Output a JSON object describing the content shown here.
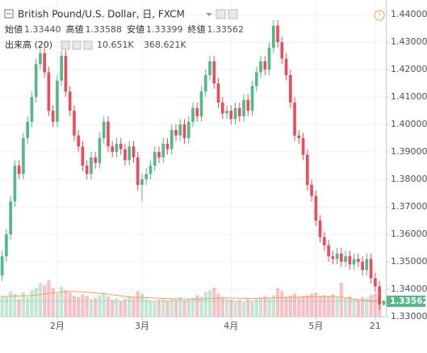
{
  "chart_data": {
    "type": "candlestick",
    "title": "British Pound/U.S. Dollar, 日, FXCM",
    "legend": [
      {
        "label": "始値",
        "value": "1.33440"
      },
      {
        "label": "高値",
        "value": "1.33588"
      },
      {
        "label": "安値",
        "value": "1.33399"
      },
      {
        "label": "終値",
        "value": "1.33562"
      }
    ],
    "volume_legend": {
      "label": "出来高 (20)",
      "volume": "10.651K",
      "ma": "368.621K"
    },
    "up_color": "#53b987",
    "down_color": "#eb4d5c",
    "ma_color": "#f6a04d",
    "categories": [
      null,
      null,
      null,
      null,
      null,
      null,
      null,
      null,
      null,
      null,
      null,
      null,
      null,
      "2月",
      null,
      null,
      null,
      null,
      null,
      null,
      null,
      null,
      null,
      null,
      null,
      null,
      null,
      null,
      null,
      null,
      null,
      null,
      null,
      "3月",
      null,
      null,
      null,
      null,
      null,
      null,
      null,
      null,
      null,
      null,
      null,
      null,
      null,
      null,
      null,
      null,
      null,
      null,
      null,
      null,
      "4月",
      null,
      null,
      null,
      null,
      null,
      null,
      null,
      null,
      null,
      null,
      null,
      null,
      null,
      null,
      null,
      null,
      null,
      null,
      null,
      "5月",
      null,
      null,
      null,
      null,
      null,
      null,
      null,
      null,
      null,
      null,
      null,
      null,
      null,
      "21",
      null,
      null
    ],
    "open": [
      1.345,
      1.352,
      1.36,
      1.372,
      1.385,
      1.382,
      1.395,
      1.401,
      1.41,
      1.422,
      1.426,
      1.419,
      1.405,
      1.401,
      1.416,
      1.425,
      1.412,
      1.405,
      1.396,
      1.392,
      1.385,
      1.382,
      1.388,
      1.386,
      1.395,
      1.401,
      1.392,
      1.39,
      1.393,
      1.391,
      1.387,
      1.392,
      1.388,
      1.378,
      1.38,
      1.382,
      1.385,
      1.39,
      1.388,
      1.393,
      1.391,
      1.398,
      1.396,
      1.4,
      1.395,
      1.401,
      1.406,
      1.403,
      1.412,
      1.418,
      1.423,
      1.415,
      1.408,
      1.404,
      1.405,
      1.402,
      1.406,
      1.403,
      1.409,
      1.405,
      1.414,
      1.419,
      1.423,
      1.42,
      1.428,
      1.436,
      1.43,
      1.424,
      1.418,
      1.408,
      1.396,
      1.395,
      1.389,
      1.378,
      1.374,
      1.365,
      1.359,
      1.356,
      1.352,
      1.351,
      1.353,
      1.35,
      1.352,
      1.349,
      1.351,
      1.35,
      1.347,
      1.351,
      1.344,
      1.341,
      1.3344
    ],
    "high": [
      1.354,
      1.362,
      1.374,
      1.387,
      1.387,
      1.397,
      1.403,
      1.412,
      1.424,
      1.428,
      1.428,
      1.421,
      1.407,
      1.418,
      1.427,
      1.427,
      1.414,
      1.407,
      1.398,
      1.394,
      1.387,
      1.39,
      1.39,
      1.397,
      1.403,
      1.403,
      1.394,
      1.395,
      1.395,
      1.393,
      1.394,
      1.394,
      1.39,
      1.382,
      1.384,
      1.387,
      1.392,
      1.392,
      1.395,
      1.395,
      1.4,
      1.4,
      1.402,
      1.402,
      1.403,
      1.408,
      1.408,
      1.414,
      1.42,
      1.425,
      1.425,
      1.417,
      1.41,
      1.407,
      1.407,
      1.408,
      1.408,
      1.411,
      1.411,
      1.416,
      1.421,
      1.425,
      1.425,
      1.43,
      1.438,
      1.438,
      1.432,
      1.426,
      1.42,
      1.41,
      1.398,
      1.397,
      1.391,
      1.38,
      1.376,
      1.367,
      1.361,
      1.358,
      1.354,
      1.355,
      1.355,
      1.354,
      1.354,
      1.353,
      1.353,
      1.352,
      1.353,
      1.353,
      1.346,
      1.343,
      1.33588
    ],
    "low": [
      1.343,
      1.35,
      1.358,
      1.37,
      1.38,
      1.38,
      1.393,
      1.399,
      1.408,
      1.42,
      1.417,
      1.403,
      1.399,
      1.399,
      1.414,
      1.41,
      1.403,
      1.394,
      1.39,
      1.383,
      1.38,
      1.38,
      1.384,
      1.384,
      1.393,
      1.39,
      1.388,
      1.388,
      1.389,
      1.385,
      1.385,
      1.386,
      1.376,
      1.372,
      1.378,
      1.38,
      1.383,
      1.386,
      1.386,
      1.389,
      1.389,
      1.394,
      1.394,
      1.393,
      1.393,
      1.399,
      1.401,
      1.401,
      1.41,
      1.416,
      1.413,
      1.406,
      1.402,
      1.402,
      1.4,
      1.4,
      1.401,
      1.401,
      1.403,
      1.403,
      1.412,
      1.417,
      1.418,
      1.418,
      1.426,
      1.428,
      1.422,
      1.416,
      1.406,
      1.394,
      1.393,
      1.387,
      1.376,
      1.372,
      1.363,
      1.357,
      1.354,
      1.35,
      1.349,
      1.349,
      1.348,
      1.348,
      1.347,
      1.347,
      1.348,
      1.345,
      1.345,
      1.342,
      1.339,
      1.3324,
      1.33399
    ],
    "close": [
      1.352,
      1.36,
      1.372,
      1.385,
      1.382,
      1.395,
      1.401,
      1.41,
      1.422,
      1.426,
      1.419,
      1.405,
      1.401,
      1.416,
      1.425,
      1.412,
      1.405,
      1.396,
      1.392,
      1.385,
      1.382,
      1.388,
      1.386,
      1.395,
      1.401,
      1.392,
      1.39,
      1.393,
      1.391,
      1.387,
      1.392,
      1.388,
      1.378,
      1.38,
      1.382,
      1.385,
      1.39,
      1.388,
      1.393,
      1.391,
      1.398,
      1.396,
      1.4,
      1.395,
      1.401,
      1.406,
      1.403,
      1.412,
      1.418,
      1.423,
      1.415,
      1.408,
      1.404,
      1.405,
      1.402,
      1.406,
      1.403,
      1.409,
      1.405,
      1.414,
      1.419,
      1.423,
      1.42,
      1.428,
      1.436,
      1.43,
      1.424,
      1.418,
      1.408,
      1.396,
      1.395,
      1.389,
      1.378,
      1.374,
      1.365,
      1.359,
      1.356,
      1.352,
      1.351,
      1.353,
      1.35,
      1.352,
      1.349,
      1.351,
      1.35,
      1.347,
      1.351,
      1.344,
      1.341,
      1.3344,
      1.33562
    ],
    "volume": {
      "values": [
        520,
        480,
        610,
        550,
        430,
        590,
        470,
        640,
        700,
        820,
        760,
        880,
        690,
        560,
        720,
        640,
        590,
        510,
        470,
        540,
        500,
        430,
        460,
        520,
        580,
        490,
        410,
        450,
        380,
        430,
        500,
        460,
        620,
        560,
        430,
        400,
        380,
        420,
        450,
        390,
        440,
        410,
        470,
        390,
        420,
        460,
        520,
        480,
        600,
        640,
        700,
        560,
        470,
        430,
        410,
        380,
        400,
        360,
        420,
        380,
        440,
        470,
        500,
        460,
        520,
        690,
        620,
        480,
        520,
        560,
        470,
        500,
        520,
        560,
        580,
        500,
        520,
        480,
        540,
        470,
        820,
        460,
        500,
        430,
        420,
        470,
        440,
        520,
        560,
        480,
        10.651
      ],
      "ma": [
        480,
        485,
        495,
        500,
        500,
        505,
        505,
        510,
        520,
        535,
        550,
        565,
        575,
        585,
        595,
        605,
        610,
        610,
        605,
        600,
        595,
        585,
        575,
        565,
        555,
        545,
        530,
        515,
        500,
        490,
        480,
        475,
        470,
        465,
        460,
        455,
        450,
        445,
        440,
        435,
        432,
        430,
        428,
        426,
        425,
        425,
        426,
        428,
        432,
        438,
        445,
        450,
        452,
        452,
        450,
        448,
        445,
        442,
        440,
        440,
        442,
        445,
        448,
        450,
        452,
        458,
        462,
        465,
        468,
        470,
        472,
        475,
        478,
        480,
        482,
        485,
        486,
        488,
        490,
        490,
        470,
        455,
        440,
        425,
        410,
        400,
        392,
        385,
        378,
        372,
        368.621
      ]
    },
    "ylim": [
      1.33,
      1.443
    ],
    "yticks": [
      {
        "value": 1.33,
        "label": "1.33000"
      },
      {
        "value": 1.34,
        "label": "1.34000"
      },
      {
        "value": 1.35,
        "label": "1.35000"
      },
      {
        "value": 1.36,
        "label": "1.36000"
      },
      {
        "value": 1.37,
        "label": "1.37000"
      },
      {
        "value": 1.38,
        "label": "1.38000"
      },
      {
        "value": 1.39,
        "label": "1.39000"
      },
      {
        "value": 1.4,
        "label": "1.40000"
      },
      {
        "value": 1.41,
        "label": "1.41000"
      },
      {
        "value": 1.42,
        "label": "1.42000"
      },
      {
        "value": 1.43,
        "label": "1.43000"
      },
      {
        "value": 1.44,
        "label": "1.44000"
      }
    ],
    "grid": true
  }
}
